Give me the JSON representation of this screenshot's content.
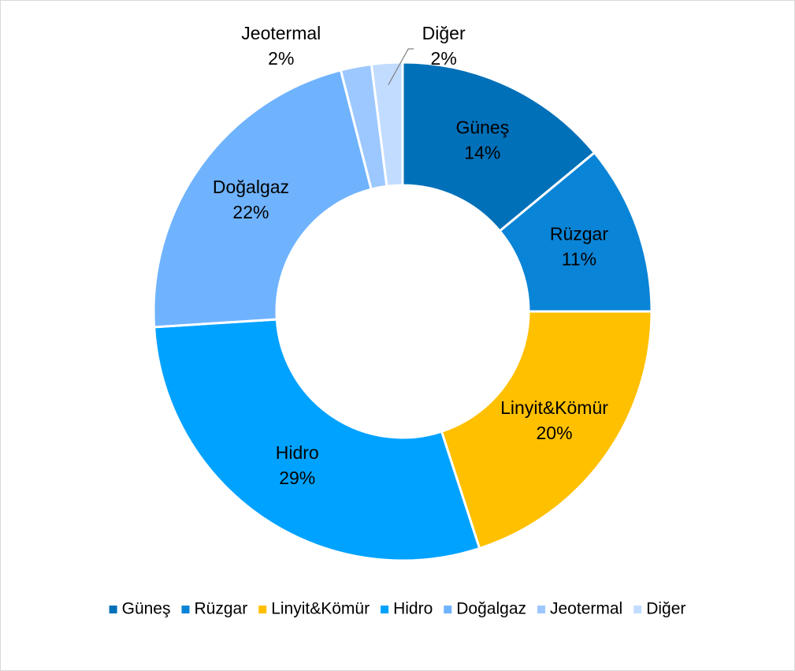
{
  "chart_data": {
    "type": "donut",
    "categories": [
      "Güneş",
      "Rüzgar",
      "Linyit&Kömür",
      "Hidro",
      "Doğalgaz",
      "Jeotermal",
      "Diğer"
    ],
    "values": [
      14,
      11,
      20,
      29,
      22,
      2,
      2
    ],
    "value_labels": [
      "14%",
      "11%",
      "20%",
      "29%",
      "22%",
      "2%",
      "2%"
    ],
    "colors": [
      "#0070b8",
      "#0a84d6",
      "#ffc000",
      "#00a2ff",
      "#6fb3ff",
      "#9cc8ff",
      "#c2dcff"
    ],
    "legend": "bottom"
  }
}
